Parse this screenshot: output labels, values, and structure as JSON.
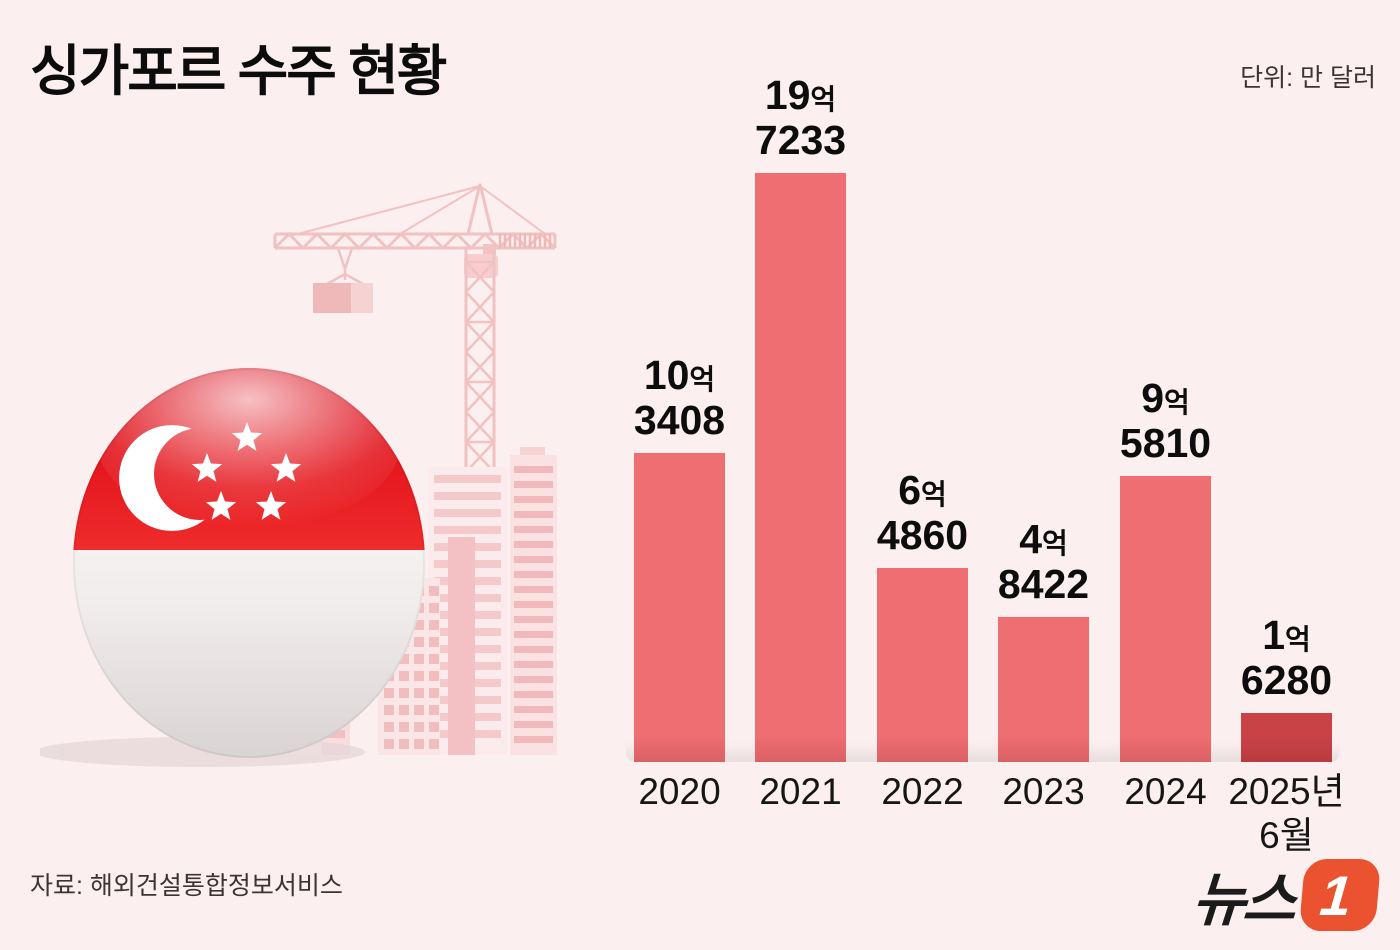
{
  "header": {
    "title": "싱가포르 수주 현황",
    "unit_label": "단위: 만 달러"
  },
  "chart_data": {
    "type": "bar",
    "title": "싱가포르 수주 현황",
    "unit": "만 달러",
    "categories": [
      [
        "2020"
      ],
      [
        "2021"
      ],
      [
        "2022"
      ],
      [
        "2023"
      ],
      [
        "2024"
      ],
      [
        "2025년",
        "6월"
      ]
    ],
    "values": [
      103408,
      197233,
      64860,
      48422,
      95810,
      16280
    ],
    "value_labels": [
      {
        "amount": "10",
        "suffix": "억",
        "line2": "3408"
      },
      {
        "amount": "19",
        "suffix": "억",
        "line2": "7233"
      },
      {
        "amount": "6",
        "suffix": "억",
        "line2": "4860"
      },
      {
        "amount": "4",
        "suffix": "억",
        "line2": "8422"
      },
      {
        "amount": "9",
        "suffix": "억",
        "line2": "5810"
      },
      {
        "amount": "1",
        "suffix": "억",
        "line2": "6280"
      }
    ],
    "ylim": [
      0,
      197233
    ],
    "grid": false,
    "legend": null,
    "highlight_last_bar": true
  },
  "footer": {
    "source": "자료: 해외건설통합정보서비스",
    "logo": {
      "text": "뉴스",
      "number": "1"
    }
  },
  "colors": {
    "background": "#fceff0",
    "bar": "#ef6e72",
    "bar_highlight": "#c84246",
    "text": "#0d0d0d",
    "muted_text": "#3c3434",
    "logo_orange": "#ea5230",
    "illustration_pink": "#f2c4c5",
    "flag_red": "#e50113"
  },
  "illustration": {
    "icons": [
      "tower-crane-icon",
      "city-buildings-icon",
      "singapore-flag-icon"
    ],
    "flag_country": "singapore"
  }
}
